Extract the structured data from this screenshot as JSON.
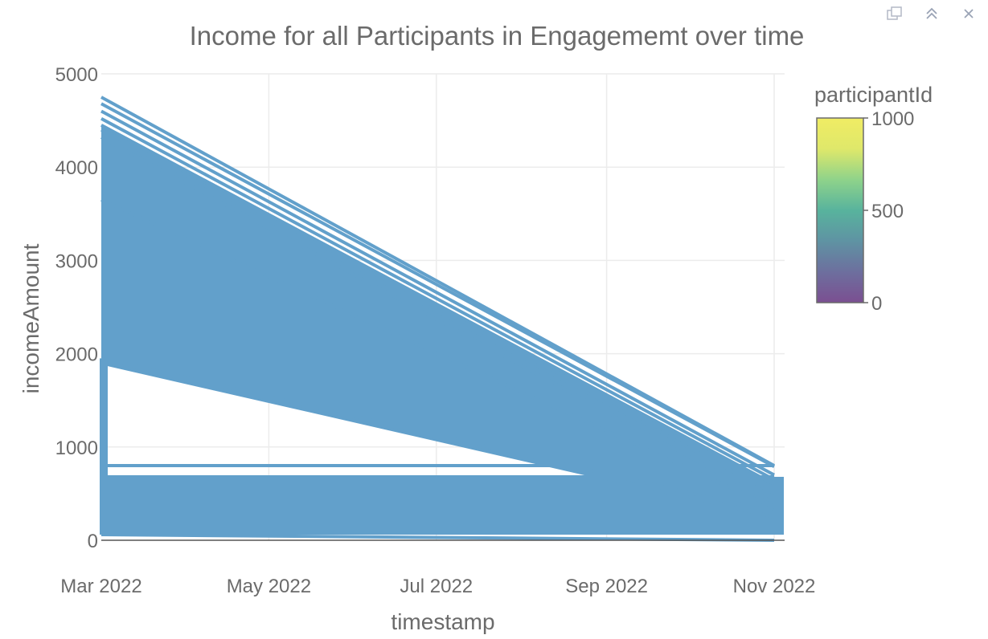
{
  "toolbar": {
    "icons": [
      "download-plot-icon",
      "autoscale-icon",
      "close-icon"
    ]
  },
  "chart_data": {
    "type": "line",
    "title": "Income for all Participants in Engagememt over time",
    "xlabel": "timestamp",
    "ylabel": "incomeAmount",
    "x_ticks": [
      "Mar 2022",
      "May 2022",
      "Jul 2022",
      "Sep 2022",
      "Nov 2022"
    ],
    "x_tick_dates": [
      "2022-03-01",
      "2022-05-01",
      "2022-07-01",
      "2022-09-01",
      "2022-11-01"
    ],
    "xlim": [
      "2022-03-01",
      "2022-11-01"
    ],
    "y_ticks": [
      "0",
      "1000",
      "2000",
      "3000",
      "4000",
      "5000"
    ],
    "ylim": [
      0,
      5000
    ],
    "grid": true,
    "series_color": "#62a0cb",
    "series": [
      {
        "x": [
          "2022-03-01",
          "2022-11-01"
        ],
        "values": [
          4750,
          800
        ]
      },
      {
        "x": [
          "2022-03-01",
          "2022-11-01"
        ],
        "values": [
          4680,
          790
        ]
      },
      {
        "x": [
          "2022-03-01",
          "2022-11-01"
        ],
        "values": [
          4600,
          700
        ]
      },
      {
        "x": [
          "2022-03-01",
          "2022-11-01"
        ],
        "values": [
          4520,
          650
        ]
      },
      {
        "x": [
          "2022-03-01",
          "2022-11-01"
        ],
        "values": [
          4450,
          600
        ]
      },
      {
        "x": [
          "2022-03-01",
          "2022-11-01"
        ],
        "values": [
          4400,
          500
        ]
      },
      {
        "x": [
          "2022-03-01",
          "2022-11-01"
        ],
        "values": [
          4320,
          400
        ]
      },
      {
        "x": [
          "2022-03-01",
          "2022-11-01"
        ],
        "values": [
          3650,
          350
        ]
      },
      {
        "x": [
          "2022-03-01",
          "2022-11-01"
        ],
        "values": [
          1950,
          300
        ]
      },
      {
        "x": [
          "2022-03-01",
          "2022-11-01"
        ],
        "values": [
          1900,
          250
        ]
      },
      {
        "x": [
          "2022-03-01",
          "2022-11-01"
        ],
        "values": [
          800,
          800
        ]
      },
      {
        "x": [
          "2022-03-01",
          "2022-11-01"
        ],
        "values": [
          680,
          680
        ]
      },
      {
        "x": [
          "2022-03-01",
          "2022-11-01"
        ],
        "values": [
          60,
          0
        ]
      }
    ],
    "colorbar": {
      "title": "participantId",
      "ticks": [
        "0",
        "500",
        "1000"
      ],
      "range": [
        0,
        1000
      ],
      "colors": [
        "#7b4f91",
        "#6d6f9e",
        "#5f93a3",
        "#58b39d",
        "#8fd38a",
        "#dfe86a",
        "#f0ec64"
      ]
    }
  }
}
